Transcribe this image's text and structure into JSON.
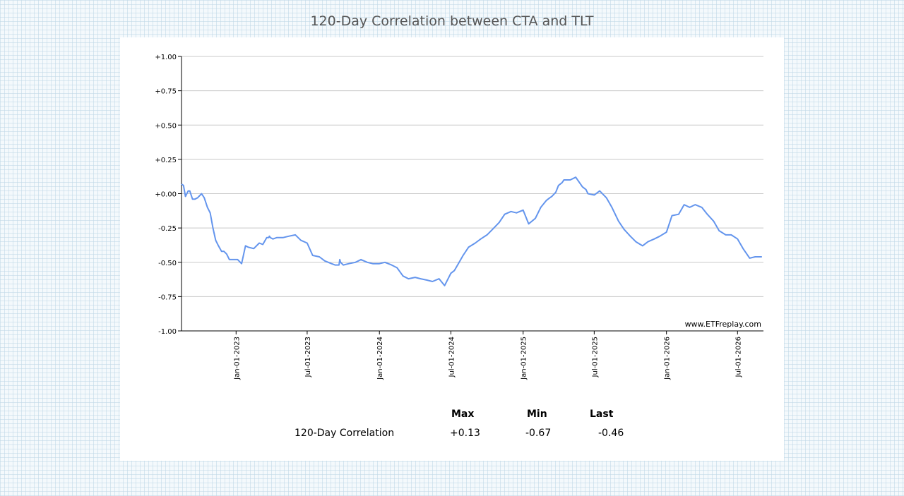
{
  "title": "120-Day Correlation between CTA and TLT",
  "watermark": "www.ETFreplay.com",
  "stats": {
    "headers": [
      "Max",
      "Min",
      "Last"
    ],
    "row_label": "120-Day Correlation",
    "values": [
      "+0.13",
      "-0.67",
      "-0.46"
    ]
  },
  "chart_data": {
    "type": "line",
    "title": "120-Day Correlation between CTA and TLT",
    "xlabel": "",
    "ylabel": "",
    "ylim": [
      -1.0,
      1.0
    ],
    "yticks": [
      1.0,
      0.75,
      0.5,
      0.25,
      0.0,
      -0.25,
      -0.5,
      -0.75,
      -1.0
    ],
    "ytick_labels": [
      "+1.00",
      "+0.75",
      "+0.50",
      "+0.25",
      "+0.00",
      "-0.25",
      "-0.50",
      "-0.75",
      "-1.00"
    ],
    "xlim": [
      "2022-08-15",
      "2026-09-05"
    ],
    "xticks": [
      "2023-01-01",
      "2023-07-01",
      "2024-01-01",
      "2024-07-01",
      "2025-01-01",
      "2025-07-01",
      "2026-01-01",
      "2026-07-01"
    ],
    "xtick_labels": [
      "Jan-01-2023",
      "Jul-01-2023",
      "Jan-01-2024",
      "Jul-01-2024",
      "Jan-01-2025",
      "Jul-01-2025",
      "Jan-01-2026",
      "Jul-01-2026"
    ],
    "grid": "horizontal",
    "line_color": "#6495ed",
    "series": [
      {
        "x": [
          "2022-08-15",
          "2022-08-20",
          "2022-08-25",
          "2022-09-01",
          "2022-09-05",
          "2022-09-12",
          "2022-09-18",
          "2022-09-25",
          "2022-10-05",
          "2022-10-12",
          "2022-10-20",
          "2022-10-27",
          "2022-11-03",
          "2022-11-10",
          "2022-11-17",
          "2022-11-25",
          "2022-12-01",
          "2022-12-08",
          "2022-12-15",
          "2022-12-22",
          "2022-12-29",
          "2023-01-05",
          "2023-01-15",
          "2023-01-25",
          "2023-02-01",
          "2023-02-15",
          "2023-03-01",
          "2023-03-10",
          "2023-03-20",
          "2023-03-25",
          "2023-03-27",
          "2023-03-29",
          "2023-04-05",
          "2023-04-15",
          "2023-05-01",
          "2023-05-15",
          "2023-06-01",
          "2023-06-15",
          "2023-07-01",
          "2023-07-15",
          "2023-08-01",
          "2023-08-15",
          "2023-09-01",
          "2023-09-10",
          "2023-09-20",
          "2023-09-22",
          "2023-09-24",
          "2023-10-01",
          "2023-10-15",
          "2023-11-01",
          "2023-11-15",
          "2023-12-01",
          "2023-12-15",
          "2024-01-01",
          "2024-01-15",
          "2024-02-01",
          "2024-02-15",
          "2024-03-01",
          "2024-03-15",
          "2024-04-01",
          "2024-04-15",
          "2024-05-01",
          "2024-05-15",
          "2024-06-01",
          "2024-06-15",
          "2024-07-01",
          "2024-07-10",
          "2024-07-20",
          "2024-08-01",
          "2024-08-15",
          "2024-09-01",
          "2024-09-15",
          "2024-10-01",
          "2024-10-15",
          "2024-11-01",
          "2024-11-15",
          "2024-12-01",
          "2024-12-15",
          "2025-01-01",
          "2025-01-15",
          "2025-02-01",
          "2025-02-15",
          "2025-03-01",
          "2025-03-10",
          "2025-03-15",
          "2025-03-25",
          "2025-04-01",
          "2025-04-10",
          "2025-04-15",
          "2025-05-01",
          "2025-05-15",
          "2025-06-01",
          "2025-06-10",
          "2025-06-15",
          "2025-07-01",
          "2025-07-15",
          "2025-08-01",
          "2025-08-15",
          "2025-09-01",
          "2025-09-15",
          "2025-10-01",
          "2025-10-15",
          "2025-11-01",
          "2025-11-15",
          "2025-12-01",
          "2025-12-15",
          "2026-01-01",
          "2026-01-15",
          "2026-02-01",
          "2026-02-15",
          "2026-03-01",
          "2026-03-15",
          "2026-04-01",
          "2026-04-15",
          "2026-05-01",
          "2026-05-15",
          "2026-06-01",
          "2026-06-15",
          "2026-07-01",
          "2026-07-15",
          "2026-08-01",
          "2026-08-15",
          "2026-09-01"
        ],
        "values": [
          0.07,
          0.06,
          -0.02,
          0.02,
          0.02,
          -0.04,
          -0.04,
          -0.03,
          0.0,
          -0.03,
          -0.1,
          -0.14,
          -0.25,
          -0.34,
          -0.38,
          -0.42,
          -0.42,
          -0.44,
          -0.48,
          -0.48,
          -0.48,
          -0.48,
          -0.51,
          -0.38,
          -0.39,
          -0.4,
          -0.36,
          -0.37,
          -0.32,
          -0.32,
          -0.31,
          -0.32,
          -0.33,
          -0.32,
          -0.32,
          -0.31,
          -0.3,
          -0.34,
          -0.36,
          -0.45,
          -0.46,
          -0.49,
          -0.51,
          -0.52,
          -0.52,
          -0.48,
          -0.5,
          -0.52,
          -0.51,
          -0.5,
          -0.48,
          -0.5,
          -0.51,
          -0.51,
          -0.5,
          -0.52,
          -0.54,
          -0.6,
          -0.62,
          -0.61,
          -0.62,
          -0.63,
          -0.64,
          -0.62,
          -0.67,
          -0.58,
          -0.56,
          -0.51,
          -0.45,
          -0.39,
          -0.36,
          -0.33,
          -0.3,
          -0.26,
          -0.21,
          -0.15,
          -0.13,
          -0.14,
          -0.12,
          -0.22,
          -0.18,
          -0.1,
          -0.05,
          -0.03,
          -0.02,
          0.01,
          0.06,
          0.08,
          0.1,
          0.1,
          0.12,
          0.05,
          0.03,
          0.0,
          -0.01,
          0.02,
          -0.03,
          -0.1,
          -0.2,
          -0.26,
          -0.31,
          -0.35,
          -0.38,
          -0.35,
          -0.33,
          -0.31,
          -0.28,
          -0.16,
          -0.15,
          -0.08,
          -0.1,
          -0.08,
          -0.1,
          -0.15,
          -0.2,
          -0.27,
          -0.3,
          -0.3,
          -0.33,
          -0.4,
          -0.47,
          -0.46,
          -0.46
        ]
      }
    ]
  }
}
